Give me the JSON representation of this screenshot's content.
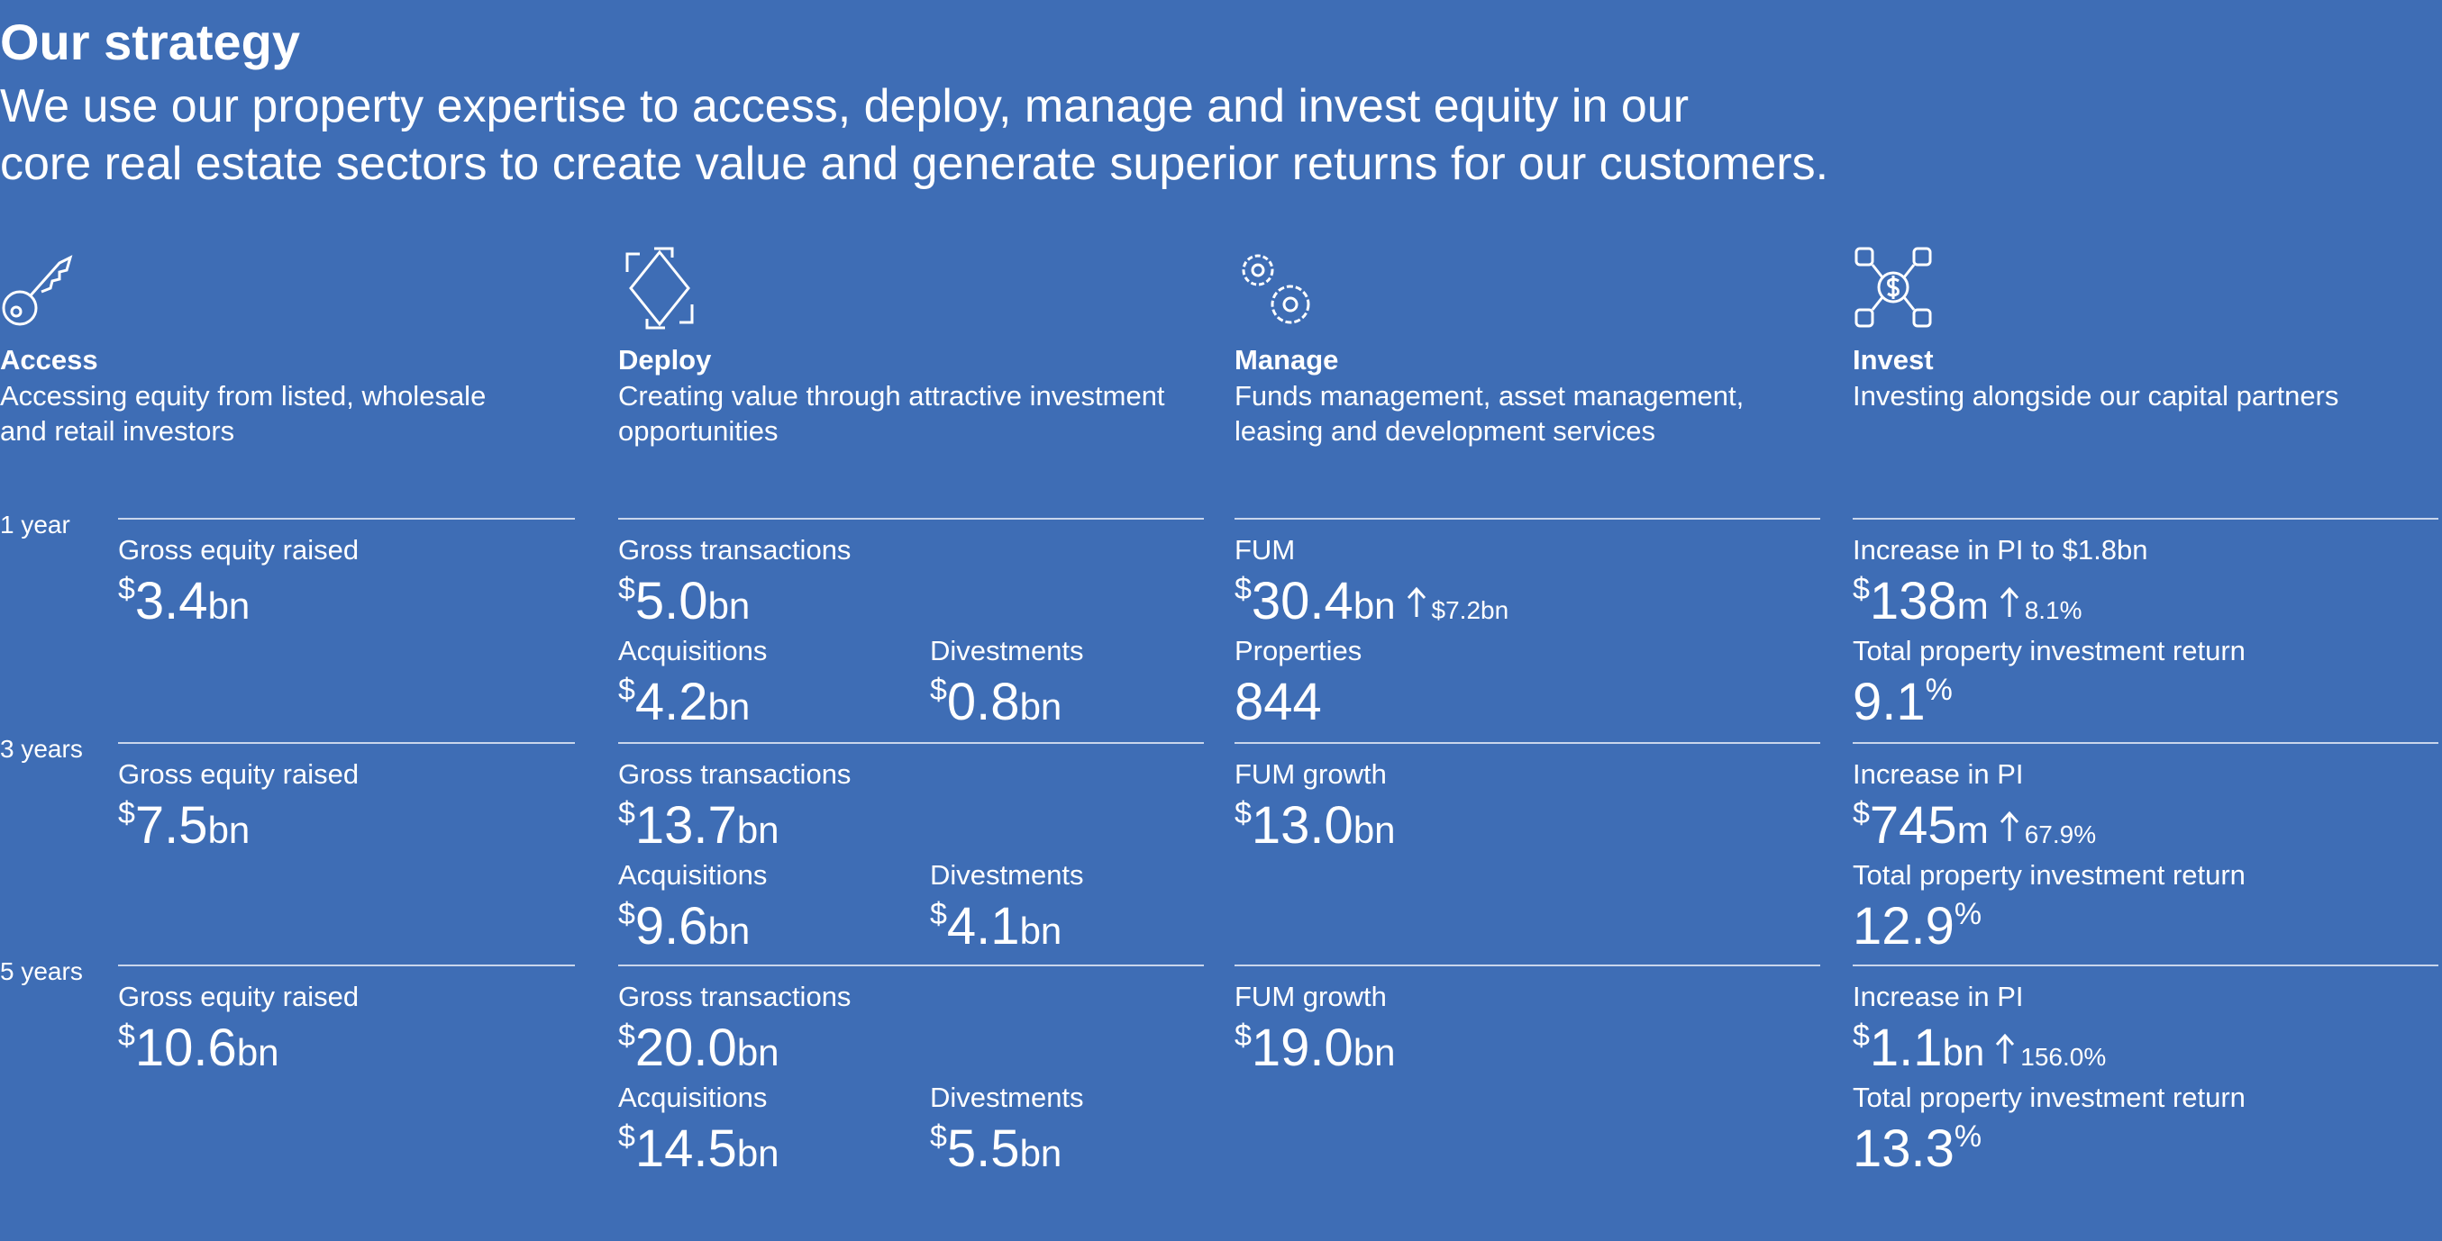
{
  "header": {
    "title": "Our strategy",
    "subtitle_lines": [
      "We use our property expertise to access, deploy, manage and invest equity in our",
      "core real estate sectors to create value and generate superior returns for our customers."
    ]
  },
  "columns": [
    {
      "heading": "Access",
      "description_lines": [
        "Accessing equity from listed, wholesale",
        "and retail investors"
      ]
    },
    {
      "heading": "Deploy",
      "description_lines": [
        "Creating value through attractive investment",
        "opportunities"
      ]
    },
    {
      "heading": "Manage",
      "description_lines": [
        "Funds management, asset management,",
        "leasing and development services"
      ]
    },
    {
      "heading": "Invest",
      "description_lines": [
        "Investing alongside our capital partners"
      ]
    }
  ],
  "rows": [
    {
      "label": "1 year",
      "cells": [
        [
          {
            "label": "Gross equity raised",
            "prefix": "$",
            "value": "3.4",
            "unit": "bn"
          }
        ],
        [
          {
            "label": "Gross transactions",
            "prefix": "$",
            "value": "5.0",
            "unit": "bn"
          },
          {
            "label": "Acquisitions",
            "prefix": "$",
            "value": "4.2",
            "unit": "bn"
          },
          {
            "label": "Divestments",
            "prefix": "$",
            "value": "0.8",
            "unit": "bn"
          }
        ],
        [
          {
            "label": "FUM",
            "prefix": "$",
            "value": "30.4",
            "unit": "bn",
            "change": "$7.2bn"
          },
          {
            "label": "Properties",
            "value": "844"
          }
        ],
        [
          {
            "label": "Increase in PI to $1.8bn",
            "prefix": "$",
            "value": "138",
            "unit": "m",
            "change": "8.1%"
          },
          {
            "label": "Total property investment return",
            "value": "9.1",
            "suffix": "%"
          }
        ]
      ]
    },
    {
      "label": "3 years",
      "cells": [
        [
          {
            "label": "Gross equity raised",
            "prefix": "$",
            "value": "7.5",
            "unit": "bn"
          }
        ],
        [
          {
            "label": "Gross transactions",
            "prefix": "$",
            "value": "13.7",
            "unit": "bn"
          },
          {
            "label": "Acquisitions",
            "prefix": "$",
            "value": "9.6",
            "unit": "bn"
          },
          {
            "label": "Divestments",
            "prefix": "$",
            "value": "4.1",
            "unit": "bn"
          }
        ],
        [
          {
            "label": "FUM growth",
            "prefix": "$",
            "value": "13.0",
            "unit": "bn"
          }
        ],
        [
          {
            "label": "Increase in PI",
            "prefix": "$",
            "value": "745",
            "unit": "m",
            "change": "67.9%"
          },
          {
            "label": "Total property investment return",
            "value": "12.9",
            "suffix": "%"
          }
        ]
      ]
    },
    {
      "label": "5 years",
      "cells": [
        [
          {
            "label": "Gross equity raised",
            "prefix": "$",
            "value": "10.6",
            "unit": "bn"
          }
        ],
        [
          {
            "label": "Gross transactions",
            "prefix": "$",
            "value": "20.0",
            "unit": "bn"
          },
          {
            "label": "Acquisitions",
            "prefix": "$",
            "value": "14.5",
            "unit": "bn"
          },
          {
            "label": "Divestments",
            "prefix": "$",
            "value": "5.5",
            "unit": "bn"
          }
        ],
        [
          {
            "label": "FUM growth",
            "prefix": "$",
            "value": "19.0",
            "unit": "bn"
          }
        ],
        [
          {
            "label": "Increase in PI",
            "prefix": "$",
            "value": "1.1",
            "unit": "bn",
            "change": "156.0%"
          },
          {
            "label": "Total property investment return",
            "value": "13.3",
            "suffix": "%"
          }
        ]
      ]
    }
  ]
}
